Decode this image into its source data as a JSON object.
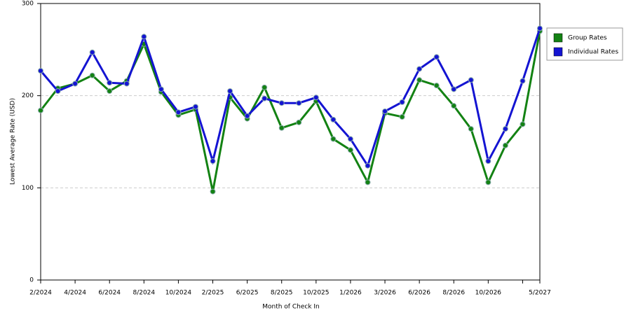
{
  "chart_data": {
    "type": "line",
    "x_label": "Month of Check In",
    "y_label": "Lowest Average Rate (USD)",
    "categories": [
      "2/2024",
      null,
      "4/2024",
      null,
      "6/2024",
      null,
      "8/2024",
      null,
      "10/2024",
      null,
      "2/2025",
      null,
      "6/2025",
      null,
      "8/2025",
      null,
      "10/2025",
      null,
      "1/2026",
      null,
      "3/2026",
      null,
      "6/2026",
      null,
      "8/2026",
      null,
      "10/2026",
      null,
      null,
      "5/2027"
    ],
    "series": [
      {
        "name": "Group Rates",
        "color": "#138213",
        "values": [
          184,
          208,
          213,
          222,
          205,
          216,
          256,
          204,
          179,
          185,
          96,
          198,
          175,
          209,
          165,
          171,
          194,
          153,
          141,
          106,
          181,
          177,
          217,
          211,
          189,
          164,
          106,
          146,
          169,
          270
        ]
      },
      {
        "name": "Individual Rates",
        "color": "#1414d2",
        "values": [
          227,
          205,
          213,
          247,
          214,
          213,
          264,
          207,
          182,
          188,
          129,
          205,
          178,
          197,
          192,
          192,
          198,
          174,
          153,
          124,
          183,
          193,
          229,
          242,
          207,
          217,
          129,
          164,
          216,
          273
        ]
      }
    ],
    "ylim": [
      0,
      300
    ],
    "yticks": [
      0,
      100,
      200,
      300
    ],
    "grid": true,
    "legend": "right"
  }
}
